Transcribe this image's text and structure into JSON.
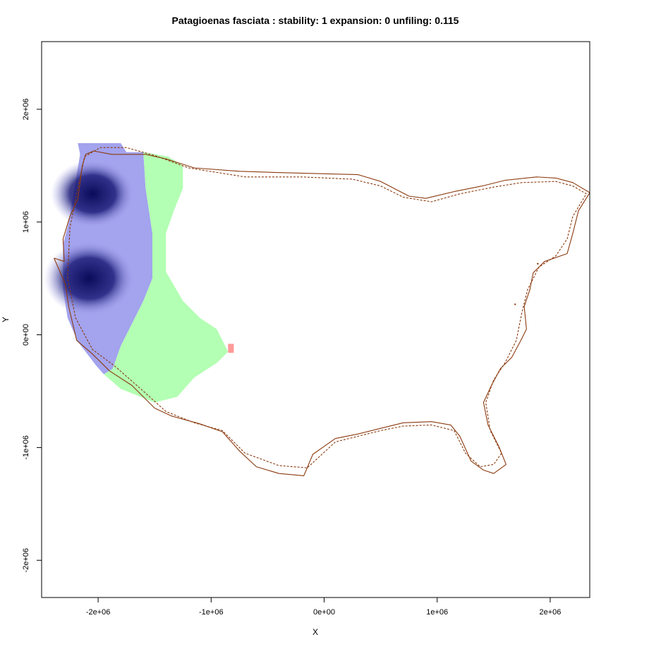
{
  "chart_data": {
    "type": "heatmap",
    "title": "Patagioenas fasciata : stability: 1 expansion: 0 unfiling: 0.115",
    "xlabel": "X",
    "ylabel": "Y",
    "xlim": [
      -2500000,
      2350000
    ],
    "ylim": [
      -2330000,
      2600000
    ],
    "x_ticks": [
      {
        "value": -2000000,
        "label": "-2e+06"
      },
      {
        "value": -1000000,
        "label": "-1e+06"
      },
      {
        "value": 0,
        "label": "0e+00"
      },
      {
        "value": 1000000,
        "label": "1e+06"
      },
      {
        "value": 2000000,
        "label": "2e+06"
      }
    ],
    "y_ticks": [
      {
        "value": -2000000,
        "label": "-2e+06"
      },
      {
        "value": -1000000,
        "label": "-1e+06"
      },
      {
        "value": 0,
        "label": "0e+00"
      },
      {
        "value": 1000000,
        "label": "1e+06"
      },
      {
        "value": 2000000,
        "label": "2e+06"
      }
    ],
    "grid": false,
    "colors": {
      "stability_dark": "#0b0b5a",
      "stability_light": "#a3a3ee",
      "unfilling": "#b3ffb3",
      "expansion": "#ff9999",
      "boundary": "#8b3a0f"
    },
    "layers": [
      {
        "name": "stability",
        "color": "#a3a3ee",
        "polygon": [
          [
            -2180000,
            1700000
          ],
          [
            -1800000,
            1700000
          ],
          [
            -1750000,
            1620000
          ],
          [
            -1600000,
            1620000
          ],
          [
            -1580000,
            1300000
          ],
          [
            -1550000,
            1100000
          ],
          [
            -1520000,
            900000
          ],
          [
            -1520000,
            500000
          ],
          [
            -1600000,
            300000
          ],
          [
            -1700000,
            100000
          ],
          [
            -1800000,
            -100000
          ],
          [
            -1870000,
            -300000
          ],
          [
            -1880000,
            -350000
          ],
          [
            -1950000,
            -350000
          ],
          [
            -2020000,
            -270000
          ],
          [
            -2180000,
            -60000
          ],
          [
            -2270000,
            150000
          ],
          [
            -2310000,
            400000
          ],
          [
            -2310000,
            800000
          ],
          [
            -2260000,
            1000000
          ],
          [
            -2210000,
            1300000
          ],
          [
            -2160000,
            1600000
          ]
        ]
      },
      {
        "name": "stability-core-north",
        "color": "#0b0b5a",
        "center": [
          -2050000,
          1250000
        ],
        "radius": [
          370000,
          300000
        ]
      },
      {
        "name": "stability-core-south",
        "color": "#0b0b5a",
        "center": [
          -2080000,
          500000
        ],
        "radius": [
          400000,
          330000
        ]
      },
      {
        "name": "unfilling",
        "color": "#b3ffb3",
        "polygon": [
          [
            -1600000,
            1620000
          ],
          [
            -1380000,
            1580000
          ],
          [
            -1250000,
            1500000
          ],
          [
            -1250000,
            1300000
          ],
          [
            -1330000,
            1100000
          ],
          [
            -1400000,
            900000
          ],
          [
            -1400000,
            560000
          ],
          [
            -1250000,
            300000
          ],
          [
            -1100000,
            150000
          ],
          [
            -950000,
            50000
          ],
          [
            -850000,
            -150000
          ],
          [
            -950000,
            -250000
          ],
          [
            -1150000,
            -380000
          ],
          [
            -1300000,
            -550000
          ],
          [
            -1500000,
            -600000
          ],
          [
            -1800000,
            -480000
          ],
          [
            -1950000,
            -350000
          ],
          [
            -1870000,
            -300000
          ],
          [
            -1800000,
            -100000
          ],
          [
            -1700000,
            100000
          ],
          [
            -1600000,
            300000
          ],
          [
            -1520000,
            500000
          ],
          [
            -1520000,
            900000
          ],
          [
            -1550000,
            1100000
          ],
          [
            -1580000,
            1300000
          ]
        ]
      },
      {
        "name": "expansion",
        "color": "#ff9999",
        "polygon": [
          [
            -850000,
            -80000
          ],
          [
            -800000,
            -80000
          ],
          [
            -800000,
            -160000
          ],
          [
            -850000,
            -160000
          ]
        ]
      }
    ],
    "boundaries": [
      {
        "name": "study-area",
        "style": "solid",
        "color": "#8b3a0f",
        "coords": [
          [
            -2390000,
            680000
          ],
          [
            -2300000,
            650000
          ],
          [
            -2310000,
            850000
          ],
          [
            -2250000,
            1050000
          ],
          [
            -2180000,
            1200000
          ],
          [
            -2140000,
            1500000
          ],
          [
            -2110000,
            1600000
          ],
          [
            -2040000,
            1630000
          ],
          [
            -1880000,
            1600000
          ],
          [
            -1730000,
            1600000
          ],
          [
            -1580000,
            1600000
          ],
          [
            -1400000,
            1560000
          ],
          [
            -1150000,
            1480000
          ],
          [
            -750000,
            1450000
          ],
          [
            -450000,
            1440000
          ],
          [
            300000,
            1420000
          ],
          [
            500000,
            1360000
          ],
          [
            750000,
            1230000
          ],
          [
            900000,
            1210000
          ],
          [
            1150000,
            1270000
          ],
          [
            1400000,
            1320000
          ],
          [
            1600000,
            1370000
          ],
          [
            1880000,
            1400000
          ],
          [
            2050000,
            1390000
          ],
          [
            2200000,
            1350000
          ],
          [
            2350000,
            1260000
          ],
          [
            2250000,
            1100000
          ],
          [
            2200000,
            900000
          ],
          [
            2150000,
            720000
          ],
          [
            1950000,
            650000
          ],
          [
            1850000,
            550000
          ],
          [
            1820000,
            400000
          ],
          [
            1770000,
            250000
          ],
          [
            1790000,
            50000
          ],
          [
            1740000,
            -50000
          ],
          [
            1660000,
            -200000
          ],
          [
            1560000,
            -300000
          ],
          [
            1480000,
            -450000
          ],
          [
            1410000,
            -600000
          ],
          [
            1450000,
            -800000
          ],
          [
            1550000,
            -1000000
          ],
          [
            1610000,
            -1150000
          ],
          [
            1500000,
            -1230000
          ],
          [
            1410000,
            -1200000
          ],
          [
            1300000,
            -1120000
          ],
          [
            1200000,
            -900000
          ],
          [
            1120000,
            -800000
          ],
          [
            950000,
            -770000
          ],
          [
            700000,
            -780000
          ],
          [
            500000,
            -830000
          ],
          [
            300000,
            -880000
          ],
          [
            100000,
            -920000
          ],
          [
            -100000,
            -1060000
          ],
          [
            -180000,
            -1250000
          ],
          [
            -400000,
            -1230000
          ],
          [
            -600000,
            -1170000
          ],
          [
            -750000,
            -1030000
          ],
          [
            -900000,
            -860000
          ],
          [
            -1100000,
            -790000
          ],
          [
            -1350000,
            -720000
          ],
          [
            -1500000,
            -650000
          ],
          [
            -1700000,
            -450000
          ],
          [
            -1900000,
            -320000
          ],
          [
            -2050000,
            -170000
          ],
          [
            -2190000,
            -50000
          ],
          [
            -2260000,
            250000
          ],
          [
            -2290000,
            450000
          ],
          [
            -2390000,
            680000
          ]
        ]
      },
      {
        "name": "reference-boundary",
        "style": "dashed",
        "color": "#8b3a0f",
        "coords": [
          [
            -2270000,
            500000
          ],
          [
            -2250000,
            950000
          ],
          [
            -2200000,
            1200000
          ],
          [
            -2120000,
            1580000
          ],
          [
            -1980000,
            1660000
          ],
          [
            -1750000,
            1660000
          ],
          [
            -1500000,
            1590000
          ],
          [
            -1200000,
            1480000
          ],
          [
            -700000,
            1400000
          ],
          [
            -200000,
            1400000
          ],
          [
            250000,
            1380000
          ],
          [
            500000,
            1320000
          ],
          [
            700000,
            1220000
          ],
          [
            950000,
            1180000
          ],
          [
            1200000,
            1250000
          ],
          [
            1500000,
            1310000
          ],
          [
            1750000,
            1350000
          ],
          [
            2050000,
            1360000
          ],
          [
            2200000,
            1320000
          ],
          [
            2320000,
            1250000
          ],
          [
            2200000,
            1050000
          ],
          [
            2150000,
            850000
          ],
          [
            2050000,
            700000
          ],
          [
            1900000,
            600000
          ],
          [
            1800000,
            400000
          ],
          [
            1750000,
            200000
          ],
          [
            1700000,
            -50000
          ],
          [
            1600000,
            -250000
          ],
          [
            1500000,
            -400000
          ],
          [
            1430000,
            -600000
          ],
          [
            1470000,
            -850000
          ],
          [
            1570000,
            -1050000
          ],
          [
            1500000,
            -1150000
          ],
          [
            1380000,
            -1170000
          ],
          [
            1250000,
            -1050000
          ],
          [
            1150000,
            -850000
          ],
          [
            950000,
            -800000
          ],
          [
            700000,
            -810000
          ],
          [
            500000,
            -850000
          ],
          [
            300000,
            -900000
          ],
          [
            100000,
            -950000
          ],
          [
            -150000,
            -1180000
          ],
          [
            -400000,
            -1160000
          ],
          [
            -700000,
            -1050000
          ],
          [
            -900000,
            -850000
          ],
          [
            -1150000,
            -780000
          ],
          [
            -1400000,
            -680000
          ],
          [
            -1600000,
            -500000
          ],
          [
            -1850000,
            -280000
          ],
          [
            -2050000,
            -130000
          ],
          [
            -2200000,
            150000
          ],
          [
            -2270000,
            500000
          ]
        ]
      }
    ],
    "points": [
      [
        1690000,
        270000
      ],
      [
        1890000,
        630000
      ]
    ]
  }
}
